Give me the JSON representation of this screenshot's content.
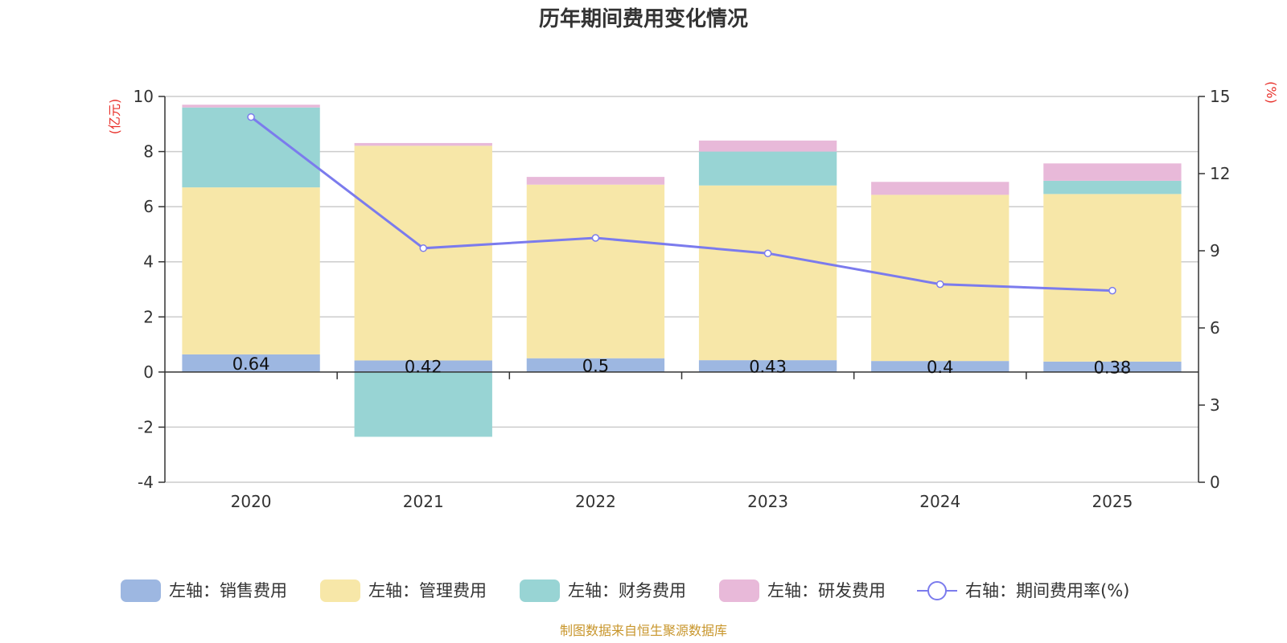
{
  "chart_data": {
    "type": "bar",
    "title": "历年期间费用变化情况",
    "categories": [
      "2020",
      "2021",
      "2022",
      "2023",
      "2024",
      "2025"
    ],
    "stacked": true,
    "series": [
      {
        "name": "左轴：销售费用",
        "axis": "left",
        "type": "bar",
        "color": "#9db7e1",
        "values": [
          0.64,
          0.42,
          0.5,
          0.43,
          0.4,
          0.38
        ],
        "labels": [
          "0.64",
          "0.42",
          "0.5",
          "0.43",
          "0.4",
          "0.38"
        ]
      },
      {
        "name": "左轴：管理费用",
        "axis": "left",
        "type": "bar",
        "color": "#f7e7a8",
        "values": [
          6.06,
          7.79,
          6.3,
          6.34,
          6.03,
          6.08
        ]
      },
      {
        "name": "左轴：财务费用",
        "axis": "left",
        "type": "bar",
        "color": "#98d4d4",
        "values": [
          2.9,
          -2.35,
          0.0,
          1.23,
          0.0,
          0.48
        ]
      },
      {
        "name": "左轴：研发费用",
        "axis": "left",
        "type": "bar",
        "color": "#e8b9d9",
        "values": [
          0.1,
          0.1,
          0.28,
          0.4,
          0.47,
          0.63
        ]
      },
      {
        "name": "右轴：期间费用率(%)",
        "axis": "right",
        "type": "line",
        "color": "#7b7bed",
        "values": [
          14.2,
          9.1,
          9.5,
          8.9,
          7.7,
          7.45
        ]
      }
    ],
    "left_axis": {
      "unit": "(亿元)",
      "ylim": [
        -4,
        10
      ],
      "ticks": [
        "-4",
        "-2",
        "0",
        "2",
        "4",
        "6",
        "8",
        "10"
      ]
    },
    "right_axis": {
      "unit": "(%)",
      "ylim": [
        0,
        15
      ],
      "ticks": [
        "0",
        "3",
        "6",
        "9",
        "12",
        "15"
      ]
    },
    "unit_color": "#e8302a",
    "legend_position": "bottom"
  },
  "source": {
    "text": "制图数据来自恒生聚源数据库",
    "color": "#c8962c"
  }
}
